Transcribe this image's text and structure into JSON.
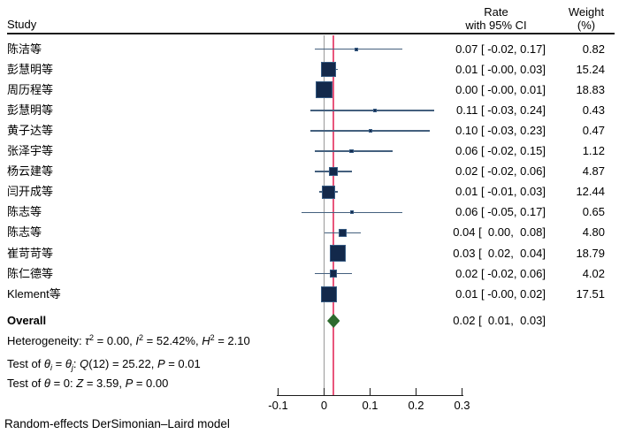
{
  "columns": {
    "study": "Study",
    "rate": [
      "Rate",
      "with 95% CI"
    ],
    "weight": [
      "Weight",
      "(%)"
    ]
  },
  "chart_data": {
    "type": "forest",
    "effect_measure": "Rate",
    "x_axis": {
      "range": [
        -0.1,
        0.3
      ],
      "ticks": [
        {
          "v": -0.1,
          "label": "-0.1"
        },
        {
          "v": 0,
          "label": "0"
        },
        {
          "v": 0.1,
          "label": "0.1"
        },
        {
          "v": 0.2,
          "label": "0.2"
        },
        {
          "v": 0.3,
          "label": "0.3"
        }
      ]
    },
    "reference_line_x": 0,
    "overall_line_x": 0.02,
    "colors": {
      "square": "#13294b",
      "square_border": "#365a82",
      "ci_line": "#44607e",
      "overall_line": "#e9567b",
      "reference_line": "#999999",
      "diamond": "#2e6b2e",
      "axis": "#1a1a1a"
    },
    "studies": [
      {
        "name": "陈洁等",
        "est": 0.07,
        "lo": -0.02,
        "hi": 0.17,
        "weight": 0.82,
        "ci_text": "0.07 [ -0.02, 0.17]",
        "weight_text": "0.82"
      },
      {
        "name": "彭慧明等",
        "est": 0.01,
        "lo": -0.0,
        "hi": 0.03,
        "weight": 15.24,
        "ci_text": "0.01 [ -0.00, 0.03]",
        "weight_text": "15.24"
      },
      {
        "name": "周历程等",
        "est": 0.0,
        "lo": -0.0,
        "hi": 0.01,
        "weight": 18.83,
        "ci_text": "0.00 [ -0.00, 0.01]",
        "weight_text": "18.83"
      },
      {
        "name": "彭慧明等",
        "est": 0.11,
        "lo": -0.03,
        "hi": 0.24,
        "weight": 0.43,
        "ci_text": "0.11 [ -0.03, 0.24]",
        "weight_text": "0.43"
      },
      {
        "name": "黄子达等",
        "est": 0.1,
        "lo": -0.03,
        "hi": 0.23,
        "weight": 0.47,
        "ci_text": "0.10 [ -0.03, 0.23]",
        "weight_text": "0.47"
      },
      {
        "name": "张泽宇等",
        "est": 0.06,
        "lo": -0.02,
        "hi": 0.15,
        "weight": 1.12,
        "ci_text": "0.06 [ -0.02, 0.15]",
        "weight_text": "1.12"
      },
      {
        "name": "杨云建等",
        "est": 0.02,
        "lo": -0.02,
        "hi": 0.06,
        "weight": 4.87,
        "ci_text": "0.02 [ -0.02, 0.06]",
        "weight_text": "4.87"
      },
      {
        "name": "闫开成等",
        "est": 0.01,
        "lo": -0.01,
        "hi": 0.03,
        "weight": 12.44,
        "ci_text": "0.01 [ -0.01, 0.03]",
        "weight_text": "12.44"
      },
      {
        "name": "陈志等",
        "est": 0.06,
        "lo": -0.05,
        "hi": 0.17,
        "weight": 0.65,
        "ci_text": "0.06 [ -0.05, 0.17]",
        "weight_text": "0.65"
      },
      {
        "name": "陈志等",
        "est": 0.04,
        "lo": 0.0,
        "hi": 0.08,
        "weight": 4.8,
        "ci_text": "0.04 [  0.00,  0.08]",
        "weight_text": "4.80"
      },
      {
        "name": "崔苛苛等",
        "est": 0.03,
        "lo": 0.02,
        "hi": 0.04,
        "weight": 18.79,
        "ci_text": "0.03 [  0.02,  0.04]",
        "weight_text": "18.79"
      },
      {
        "name": "陈仁德等",
        "est": 0.02,
        "lo": -0.02,
        "hi": 0.06,
        "weight": 4.02,
        "ci_text": "0.02 [ -0.02, 0.06]",
        "weight_text": "4.02"
      },
      {
        "name": "Klement等",
        "est": 0.01,
        "lo": -0.0,
        "hi": 0.02,
        "weight": 17.51,
        "ci_text": "0.01 [ -0.00, 0.02]",
        "weight_text": "17.51"
      }
    ],
    "overall": {
      "label": "Overall",
      "est": 0.02,
      "lo": 0.01,
      "hi": 0.03,
      "ci_text": "0.02 [  0.01,  0.03]"
    }
  },
  "stats": {
    "het": {
      "p0": "Heterogeneity: ",
      "p1": "τ",
      "p2": "2",
      "p3": " = 0.00, ",
      "p4": "I",
      "p5": "2",
      "p6": " = 52.42%, ",
      "p7": "H",
      "p8": "2",
      "p9": " = 2.10"
    },
    "t1": {
      "p0": "Test of ",
      "p1": "θ",
      "p2": "i",
      "p3": " = ",
      "p4": "θ",
      "p5": "j",
      "p6": ": ",
      "p7": "Q",
      "p8": "(12) = 25.22, ",
      "p9": "P",
      "p10": " = 0.01"
    },
    "t2": {
      "p0": "Test of ",
      "p1": "θ",
      "p2": " = 0: ",
      "p3": "Z",
      "p4": " = 3.59, ",
      "p5": "P",
      "p6": " = 0.00"
    }
  },
  "footer": {
    "model_note": "Random-effects DerSimonian–Laird model"
  }
}
